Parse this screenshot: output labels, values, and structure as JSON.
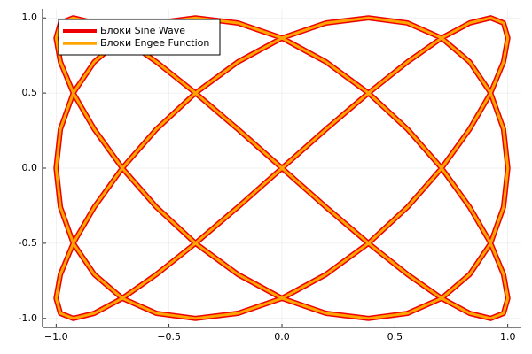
{
  "chart_data": {
    "type": "line",
    "x": [
      0,
      0.195,
      0.383,
      0.556,
      0.707,
      0.831,
      0.924,
      0.981,
      1,
      0.981,
      0.924,
      0.831,
      0.707,
      0.556,
      0.383,
      0.195,
      0,
      -0.195,
      -0.383,
      -0.556,
      -0.707,
      -0.831,
      -0.924,
      -0.981,
      -1,
      -0.981,
      -0.924,
      -0.831,
      -0.707,
      -0.556,
      -0.383,
      -0.195,
      0,
      0.195,
      0.383,
      0.556,
      0.707,
      0.831,
      0.924,
      0.981,
      1,
      0.981,
      0.924,
      0.831,
      0.707,
      0.556,
      0.383,
      0.195,
      0,
      -0.195,
      -0.383,
      -0.556,
      -0.707,
      -0.831,
      -0.924,
      -0.981,
      -1,
      -0.981,
      -0.924,
      -0.831,
      -0.707,
      -0.556,
      -0.383,
      -0.195,
      0,
      0.195,
      0.383,
      0.556,
      0.707,
      0.831,
      0.924,
      0.981,
      1,
      0.981,
      0.924,
      0.831,
      0.707,
      0.556,
      0.383,
      0.195,
      0,
      -0.195,
      -0.383,
      -0.556,
      -0.707,
      -0.831,
      -0.924,
      -0.981,
      -1,
      -0.981,
      -0.924,
      -0.831,
      -0.707,
      -0.556,
      -0.383,
      -0.195,
      0
    ],
    "series": [
      {
        "name": "Блоки Sine Wave",
        "color": "#ee0000",
        "values": [
          0,
          0.259,
          0.5,
          0.707,
          0.866,
          0.966,
          1,
          0.966,
          0.866,
          0.707,
          0.5,
          0.259,
          0,
          -0.259,
          -0.5,
          -0.707,
          -0.866,
          -0.966,
          -1,
          -0.966,
          -0.866,
          -0.707,
          -0.5,
          -0.259,
          0,
          0.259,
          0.5,
          0.707,
          0.866,
          0.966,
          1,
          0.966,
          0.866,
          0.707,
          0.5,
          0.259,
          0,
          -0.259,
          -0.5,
          -0.707,
          -0.866,
          -0.966,
          -1,
          -0.966,
          -0.866,
          -0.707,
          -0.5,
          -0.259,
          0,
          0.259,
          0.5,
          0.707,
          0.866,
          0.966,
          1,
          0.966,
          0.866,
          0.707,
          0.5,
          0.259,
          0,
          -0.259,
          -0.5,
          -0.707,
          -0.866,
          -0.966,
          -1,
          -0.966,
          -0.866,
          -0.707,
          -0.5,
          -0.259,
          0,
          0.259,
          0.5,
          0.707,
          0.866,
          0.966,
          1,
          0.966,
          0.866,
          0.707,
          0.5,
          0.259,
          0,
          -0.259,
          -0.5,
          -0.707,
          -0.866,
          -0.966,
          -1,
          -0.966,
          -0.866,
          -0.707,
          -0.5,
          -0.259,
          0
        ]
      },
      {
        "name": "Блоки Engee Function",
        "color": "#ffa500",
        "values": [
          0,
          0.259,
          0.5,
          0.707,
          0.866,
          0.966,
          1,
          0.966,
          0.866,
          0.707,
          0.5,
          0.259,
          0,
          -0.259,
          -0.5,
          -0.707,
          -0.866,
          -0.966,
          -1,
          -0.966,
          -0.866,
          -0.707,
          -0.5,
          -0.259,
          0,
          0.259,
          0.5,
          0.707,
          0.866,
          0.966,
          1,
          0.966,
          0.866,
          0.707,
          0.5,
          0.259,
          0,
          -0.259,
          -0.5,
          -0.707,
          -0.866,
          -0.966,
          -1,
          -0.966,
          -0.866,
          -0.707,
          -0.5,
          -0.259,
          0,
          0.259,
          0.5,
          0.707,
          0.866,
          0.966,
          1,
          0.966,
          0.866,
          0.707,
          0.5,
          0.259,
          0,
          -0.259,
          -0.5,
          -0.707,
          -0.866,
          -0.966,
          -1,
          -0.966,
          -0.866,
          -0.707,
          -0.5,
          -0.259,
          0,
          0.259,
          0.5,
          0.707,
          0.866,
          0.966,
          1,
          0.966,
          0.866,
          0.707,
          0.5,
          0.259,
          0,
          -0.259,
          -0.5,
          -0.707,
          -0.866,
          -0.966,
          -1,
          -0.966,
          -0.866,
          -0.707,
          -0.5,
          -0.259,
          0
        ]
      }
    ],
    "xlim": [
      -1.06,
      1.06
    ],
    "ylim": [
      -1.06,
      1.06
    ],
    "xticks": [
      {
        "value": -1,
        "label": "−1.0"
      },
      {
        "value": -0.5,
        "label": "−0.5"
      },
      {
        "value": 0,
        "label": "0.0"
      },
      {
        "value": 0.5,
        "label": "0.5"
      },
      {
        "value": 1,
        "label": "1.0"
      }
    ],
    "yticks": [
      {
        "value": -1,
        "label": "-1.0"
      },
      {
        "value": -0.5,
        "label": "-0.5"
      },
      {
        "value": 0,
        "label": "0.0"
      },
      {
        "value": 0.5,
        "label": "0.5"
      },
      {
        "value": 1,
        "label": "1.0"
      }
    ],
    "grid": true,
    "legend": "top-left"
  }
}
